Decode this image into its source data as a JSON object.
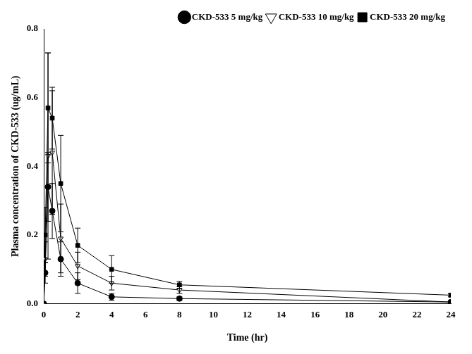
{
  "chart_data": {
    "type": "line",
    "x_label": "Time (hr)",
    "y_label": "Plasma concentration of CKD-533 (ug/mL)",
    "x": [
      0,
      0.083,
      0.25,
      0.5,
      1,
      2,
      4,
      8,
      24
    ],
    "series": [
      {
        "name": "CKD-533 5 mg/kg",
        "color": "#000000",
        "marker": "circle",
        "values": [
          0,
          0.09,
          0.34,
          0.27,
          0.13,
          0.06,
          0.02,
          0.015,
          0.005
        ],
        "errors": [
          0,
          0.03,
          0.1,
          0.08,
          0.05,
          0.03,
          0.01,
          0.005,
          0.003
        ]
      },
      {
        "name": "CKD-533 10 mg/kg",
        "color": "#000000",
        "marker": "open-triangle-down",
        "values": [
          0,
          0.13,
          0.43,
          0.44,
          0.19,
          0.11,
          0.06,
          0.04,
          0.005
        ],
        "errors": [
          0,
          0.05,
          0.3,
          0.18,
          0.1,
          0.04,
          0.02,
          0.01,
          0.003
        ]
      },
      {
        "name": "CKD-533 20 mg/kg",
        "color": "#000000",
        "marker": "square",
        "values": [
          0,
          0.2,
          0.57,
          0.54,
          0.35,
          0.17,
          0.1,
          0.055,
          0.025
        ],
        "errors": [
          0,
          0.08,
          0.16,
          0.09,
          0.14,
          0.05,
          0.04,
          0.01,
          0.005
        ]
      }
    ],
    "xlim": [
      0,
      24
    ],
    "xticks": [
      0,
      2,
      4,
      6,
      8,
      10,
      12,
      14,
      16,
      18,
      20,
      22,
      24
    ],
    "ylim": [
      0,
      0.8
    ],
    "yticks": [
      {
        "value": 0,
        "label": "0.0"
      },
      0.2,
      0.4,
      0.6,
      0.8
    ],
    "grid": false,
    "legend": "top-right"
  }
}
